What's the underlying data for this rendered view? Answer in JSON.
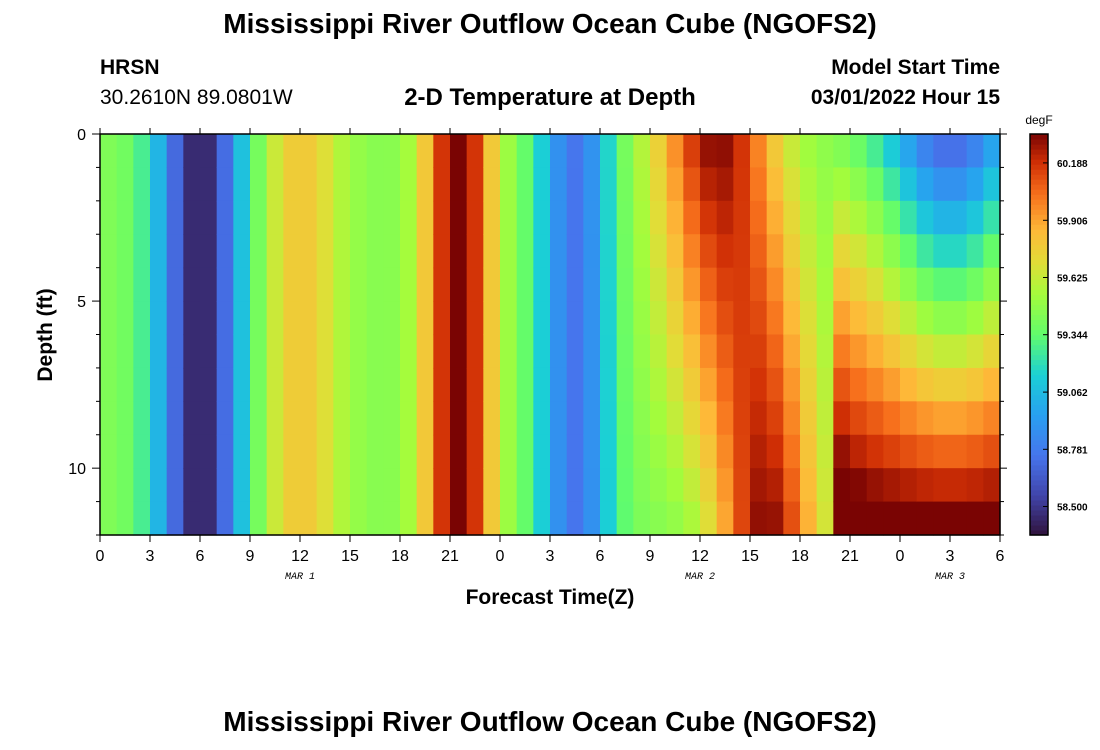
{
  "header": {
    "title": "Mississippi River Outflow Ocean Cube (NGOFS2)",
    "station_name": "HRSN",
    "station_coords": "30.2610N  89.0801W",
    "subtitle": "2-D Temperature at Depth",
    "model_start_label": "Model Start Time",
    "model_start_value": "03/01/2022 Hour 15"
  },
  "footer": {
    "title_repeat": "Mississippi River Outflow Ocean Cube (NGOFS2)"
  },
  "chart_data": {
    "type": "heatmap",
    "title": "2-D Temperature at Depth",
    "xlabel": "Forecast Time(Z)",
    "ylabel": "Depth (ft)",
    "x_hours_since_mar1_00z": [
      0,
      54
    ],
    "y_depth_ft": [
      0,
      12
    ],
    "x_tick_labels": [
      "0",
      "3",
      "6",
      "9",
      "12",
      "15",
      "18",
      "21",
      "0",
      "3",
      "6",
      "9",
      "12",
      "15",
      "18",
      "21",
      "0",
      "3",
      "6"
    ],
    "y_tick_labels": [
      "0",
      "5",
      "10"
    ],
    "y_ticks": [
      0,
      5,
      10
    ],
    "day_labels": [
      {
        "text": "MAR 1",
        "hour": 12
      },
      {
        "text": "MAR 2",
        "hour": 36
      },
      {
        "text": "MAR 3",
        "hour": 51
      }
    ],
    "colorbar": {
      "unit": "degF",
      "min": 58.36,
      "max": 60.33,
      "tick_values": [
        58.5,
        58.781,
        59.062,
        59.344,
        59.625,
        59.906,
        60.188
      ],
      "tick_labels": [
        "58.500",
        "58.781",
        "59.062",
        "59.344",
        "59.625",
        "59.906",
        "60.188"
      ]
    },
    "depth_levels": [
      0,
      1,
      2,
      3,
      4,
      5,
      6,
      7,
      8,
      9,
      10,
      11,
      12
    ],
    "time_hours": [
      0,
      1,
      2,
      3,
      4,
      5,
      6,
      7,
      8,
      9,
      10,
      11,
      12,
      13,
      14,
      15,
      16,
      17,
      18,
      19,
      20,
      21,
      22,
      23,
      24,
      25,
      26,
      27,
      28,
      29,
      30,
      31,
      32,
      33,
      34,
      35,
      36,
      37,
      38,
      39,
      40,
      41,
      42,
      43,
      44,
      45,
      46,
      47,
      48,
      49,
      50,
      51,
      52,
      53,
      54
    ],
    "grid": false
  }
}
